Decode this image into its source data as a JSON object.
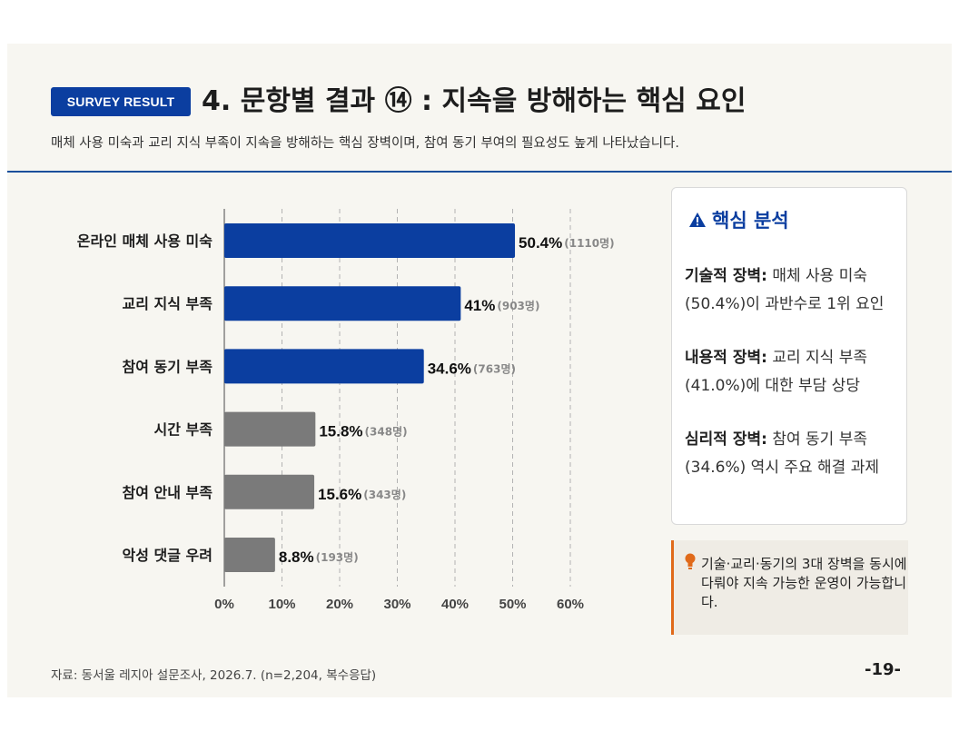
{
  "header": {
    "badge": "SURVEY RESULT",
    "title": "4. 문항별 결과 ⑭ : 지속을 방해하는 핵심 요인",
    "subtitle": "매체 사용 미숙과 교리 지식 부족이 지속을 방해하는 핵심 장벽이며, 참여 동기 부여의 필요성도 높게 나타났습니다."
  },
  "chart_data": {
    "type": "bar",
    "orientation": "horizontal",
    "categories": [
      "온라인 매체 사용 미숙",
      "교리 지식 부족",
      "참여 동기 부족",
      "시간 부족",
      "참여 안내 부족",
      "악성 댓글 우려"
    ],
    "values": [
      50.4,
      41,
      34.6,
      15.8,
      15.6,
      8.8
    ],
    "value_labels": [
      "50.4%",
      "41%",
      "34.6%",
      "15.8%",
      "15.6%",
      "8.8%"
    ],
    "counts": [
      "(1110명)",
      "(903명)",
      "(763명)",
      "(348명)",
      "(343명)",
      "(193명)"
    ],
    "bar_colors": [
      "#0b3ea0",
      "#0b3ea0",
      "#0b3ea0",
      "#7a7a7a",
      "#7a7a7a",
      "#7a7a7a"
    ],
    "xlim": [
      0,
      60
    ],
    "xticks": [
      "0%",
      "10%",
      "20%",
      "30%",
      "40%",
      "50%",
      "60%"
    ],
    "grid": true,
    "grid_style": "dashed vertical"
  },
  "analysis": {
    "icon": "warning-icon",
    "heading": "핵심 분석",
    "items": [
      {
        "label": "기술적 장벽:",
        "text": "매체 사용 미숙 (50.4%)이 과반수로 1위 요인"
      },
      {
        "label": "내용적 장벽:",
        "text": "교리 지식 부족 (41.0%)에 대한 부담 상당"
      },
      {
        "label": "심리적 장벽:",
        "text": "참여 동기 부족 (34.6%) 역시 주요 해결 과제"
      }
    ]
  },
  "note": {
    "icon": "lightbulb-icon",
    "text": "기술·교리·동기의 3대 장벽을 동시에 다뤄야 지속 가능한 운영이 가능합니다."
  },
  "footer": {
    "source": "자료: 동서울 레지아 설문조사, 2026.7. (n=2,204, 복수응답)",
    "page": "-19-"
  },
  "colors": {
    "primary": "#0b3ea0",
    "secondary_bar": "#7a7a7a",
    "accent": "#e06a1a",
    "background": "#f7f6f1"
  }
}
